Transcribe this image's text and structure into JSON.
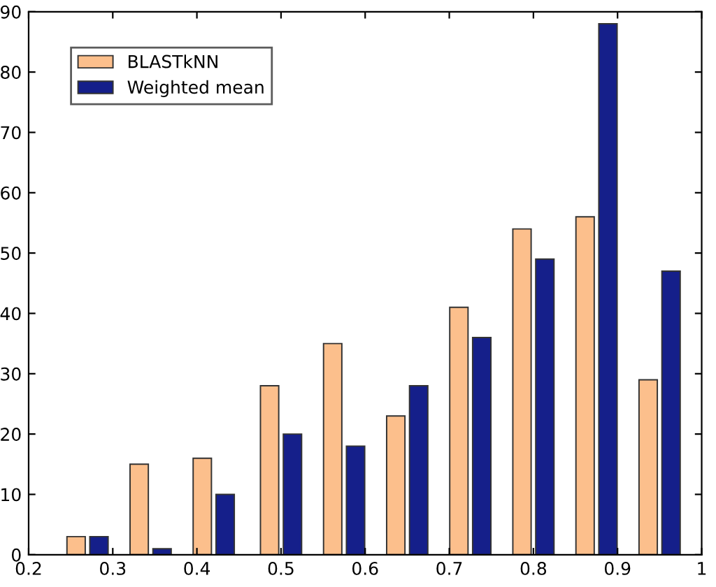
{
  "chart_data": {
    "type": "bar",
    "x": [
      0.27,
      0.345,
      0.42,
      0.5,
      0.575,
      0.65,
      0.725,
      0.8,
      0.875,
      0.95
    ],
    "series": [
      {
        "name": "BLASTkNN",
        "color": "#fcbf8c",
        "values": [
          3,
          15,
          16,
          28,
          35,
          23,
          41,
          54,
          56,
          29
        ]
      },
      {
        "name": "Weighted mean",
        "color": "#151f8a",
        "values": [
          3,
          1,
          10,
          20,
          18,
          28,
          36,
          49,
          88,
          47
        ]
      }
    ],
    "xlim": [
      0.2,
      1
    ],
    "xticks": [
      0.2,
      0.3,
      0.4,
      0.5,
      0.6,
      0.7,
      0.8,
      0.9,
      1
    ],
    "ylim": [
      0,
      90
    ],
    "yticks": [
      0,
      10,
      20,
      30,
      40,
      50,
      60,
      70,
      80,
      90
    ],
    "grid": false,
    "legend": "top left"
  }
}
